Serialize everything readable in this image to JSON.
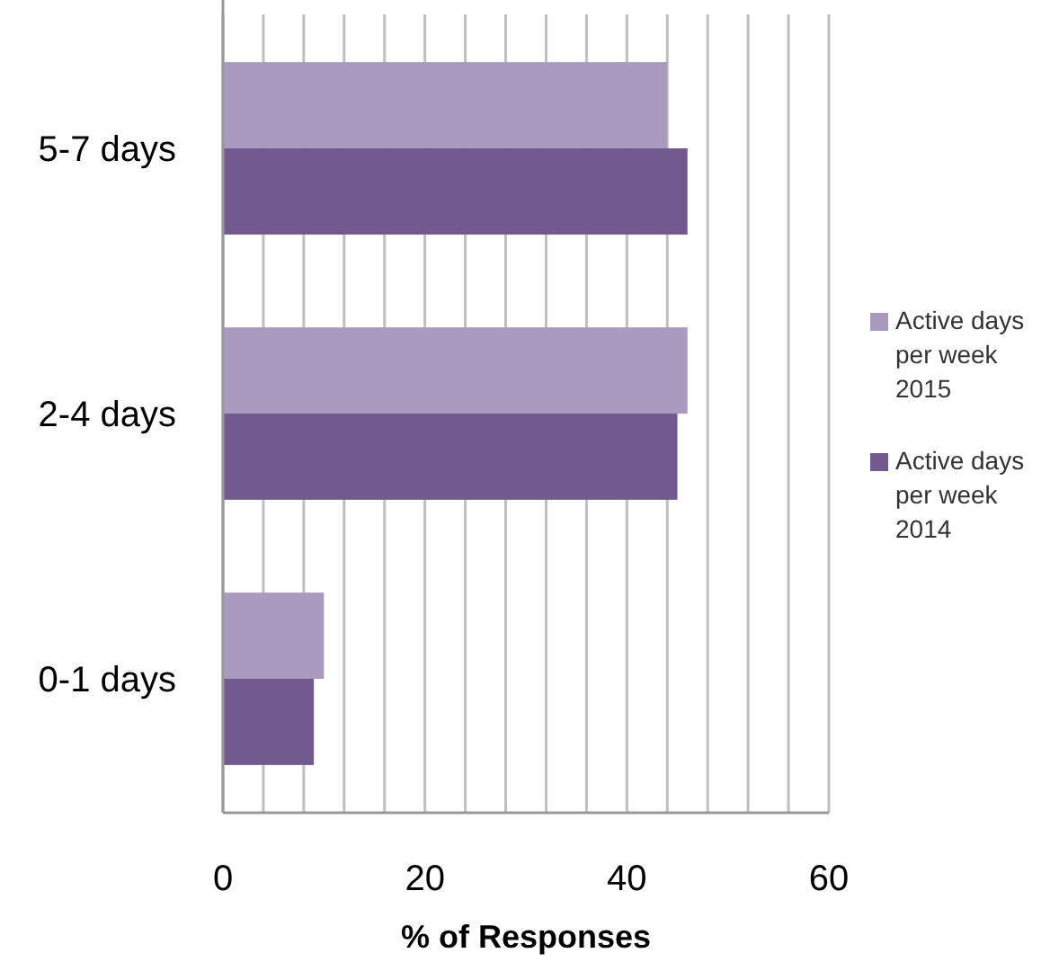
{
  "chart_data": {
    "type": "bar",
    "orientation": "horizontal",
    "xlabel": "% of Responses",
    "categories": [
      "5-7 days",
      "2-4 days",
      "0-1 days"
    ],
    "series": [
      {
        "name": "Active days per week 2015",
        "color": "#a99bc0",
        "values": [
          44,
          46,
          10
        ]
      },
      {
        "name": "Active days per week 2014",
        "color": "#725a8e",
        "values": [
          46,
          45,
          9
        ]
      }
    ],
    "xlim": [
      0,
      60
    ],
    "xticks": [
      0,
      {
        "value": 4,
        "label": null
      },
      {
        "value": 8,
        "label": null
      },
      {
        "value": 12,
        "label": null
      },
      {
        "value": 16,
        "label": null
      },
      20,
      {
        "value": 24,
        "label": null
      },
      {
        "value": 28,
        "label": null
      },
      {
        "value": 32,
        "label": null
      },
      {
        "value": 36,
        "label": null
      },
      40,
      {
        "value": 44,
        "label": null
      },
      {
        "value": 48,
        "label": null
      },
      {
        "value": 52,
        "label": null
      },
      {
        "value": 56,
        "label": null
      },
      60
    ],
    "grid": "x",
    "legend": "right"
  }
}
